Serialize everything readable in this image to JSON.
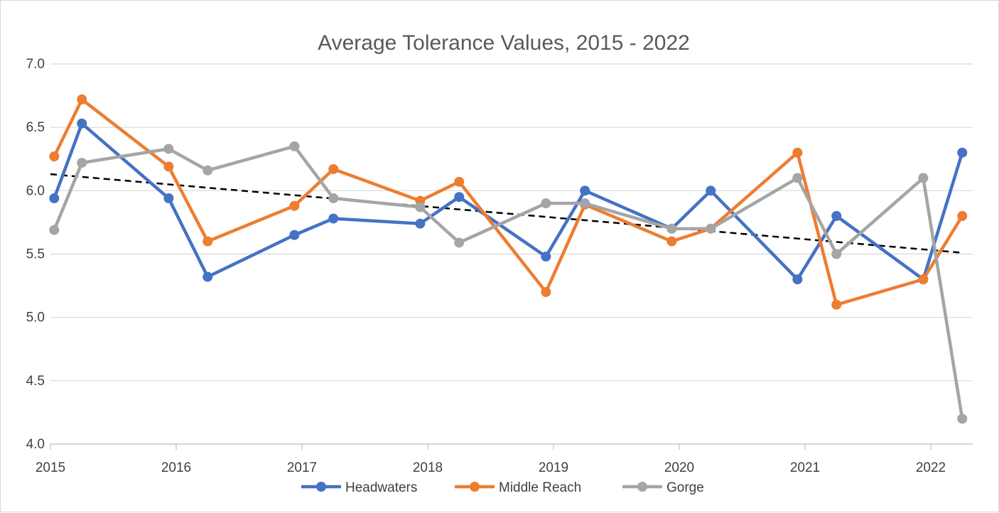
{
  "chart_data": {
    "type": "line",
    "title": "Average Tolerance Values, 2015 - 2022",
    "xlabel": "",
    "ylabel": "",
    "ylim": [
      4.0,
      7.0
    ],
    "yticks": [
      "4.0",
      "4.5",
      "5.0",
      "5.5",
      "6.0",
      "6.5",
      "7.0"
    ],
    "xticks": [
      "2015",
      "2016",
      "2017",
      "2018",
      "2019",
      "2020",
      "2021",
      "2022"
    ],
    "xrange": [
      0,
      7
    ],
    "grid": "horizontal",
    "legend_position": "bottom",
    "series": [
      {
        "name": "Headwaters",
        "color": "#4472c4",
        "x": [
          0.03,
          0.25,
          0.94,
          1.25,
          1.94,
          2.25,
          2.94,
          3.25,
          3.94,
          4.25,
          4.94,
          5.25,
          5.94,
          6.25,
          6.94,
          7.25
        ],
        "values": [
          5.94,
          6.53,
          5.94,
          5.32,
          5.65,
          5.78,
          5.74,
          5.95,
          5.48,
          6.0,
          5.7,
          6.0,
          5.3,
          5.8,
          5.3,
          6.3
        ]
      },
      {
        "name": "Middle Reach",
        "color": "#ed7d31",
        "x": [
          0.03,
          0.25,
          0.94,
          1.25,
          1.94,
          2.25,
          2.94,
          3.25,
          3.94,
          4.25,
          4.94,
          5.25,
          5.94,
          6.25,
          6.94,
          7.25
        ],
        "values": [
          6.27,
          6.72,
          6.19,
          5.6,
          5.88,
          6.17,
          5.92,
          6.07,
          5.2,
          5.89,
          5.6,
          5.7,
          6.3,
          5.1,
          5.3,
          5.8
        ]
      },
      {
        "name": "Gorge",
        "color": "#a5a5a5",
        "x": [
          0.03,
          0.25,
          0.94,
          1.25,
          1.94,
          2.25,
          2.94,
          3.25,
          3.94,
          4.25,
          4.94,
          5.25,
          5.94,
          6.25,
          6.94,
          7.25
        ],
        "values": [
          5.69,
          6.22,
          6.33,
          6.16,
          6.35,
          5.94,
          5.87,
          5.59,
          5.9,
          5.9,
          5.7,
          5.7,
          6.1,
          5.5,
          6.1,
          4.2
        ]
      }
    ],
    "trendline": {
      "style": "dashed",
      "color": "#000000",
      "x": [
        0.0,
        7.25
      ],
      "values": [
        6.13,
        5.51
      ]
    }
  }
}
